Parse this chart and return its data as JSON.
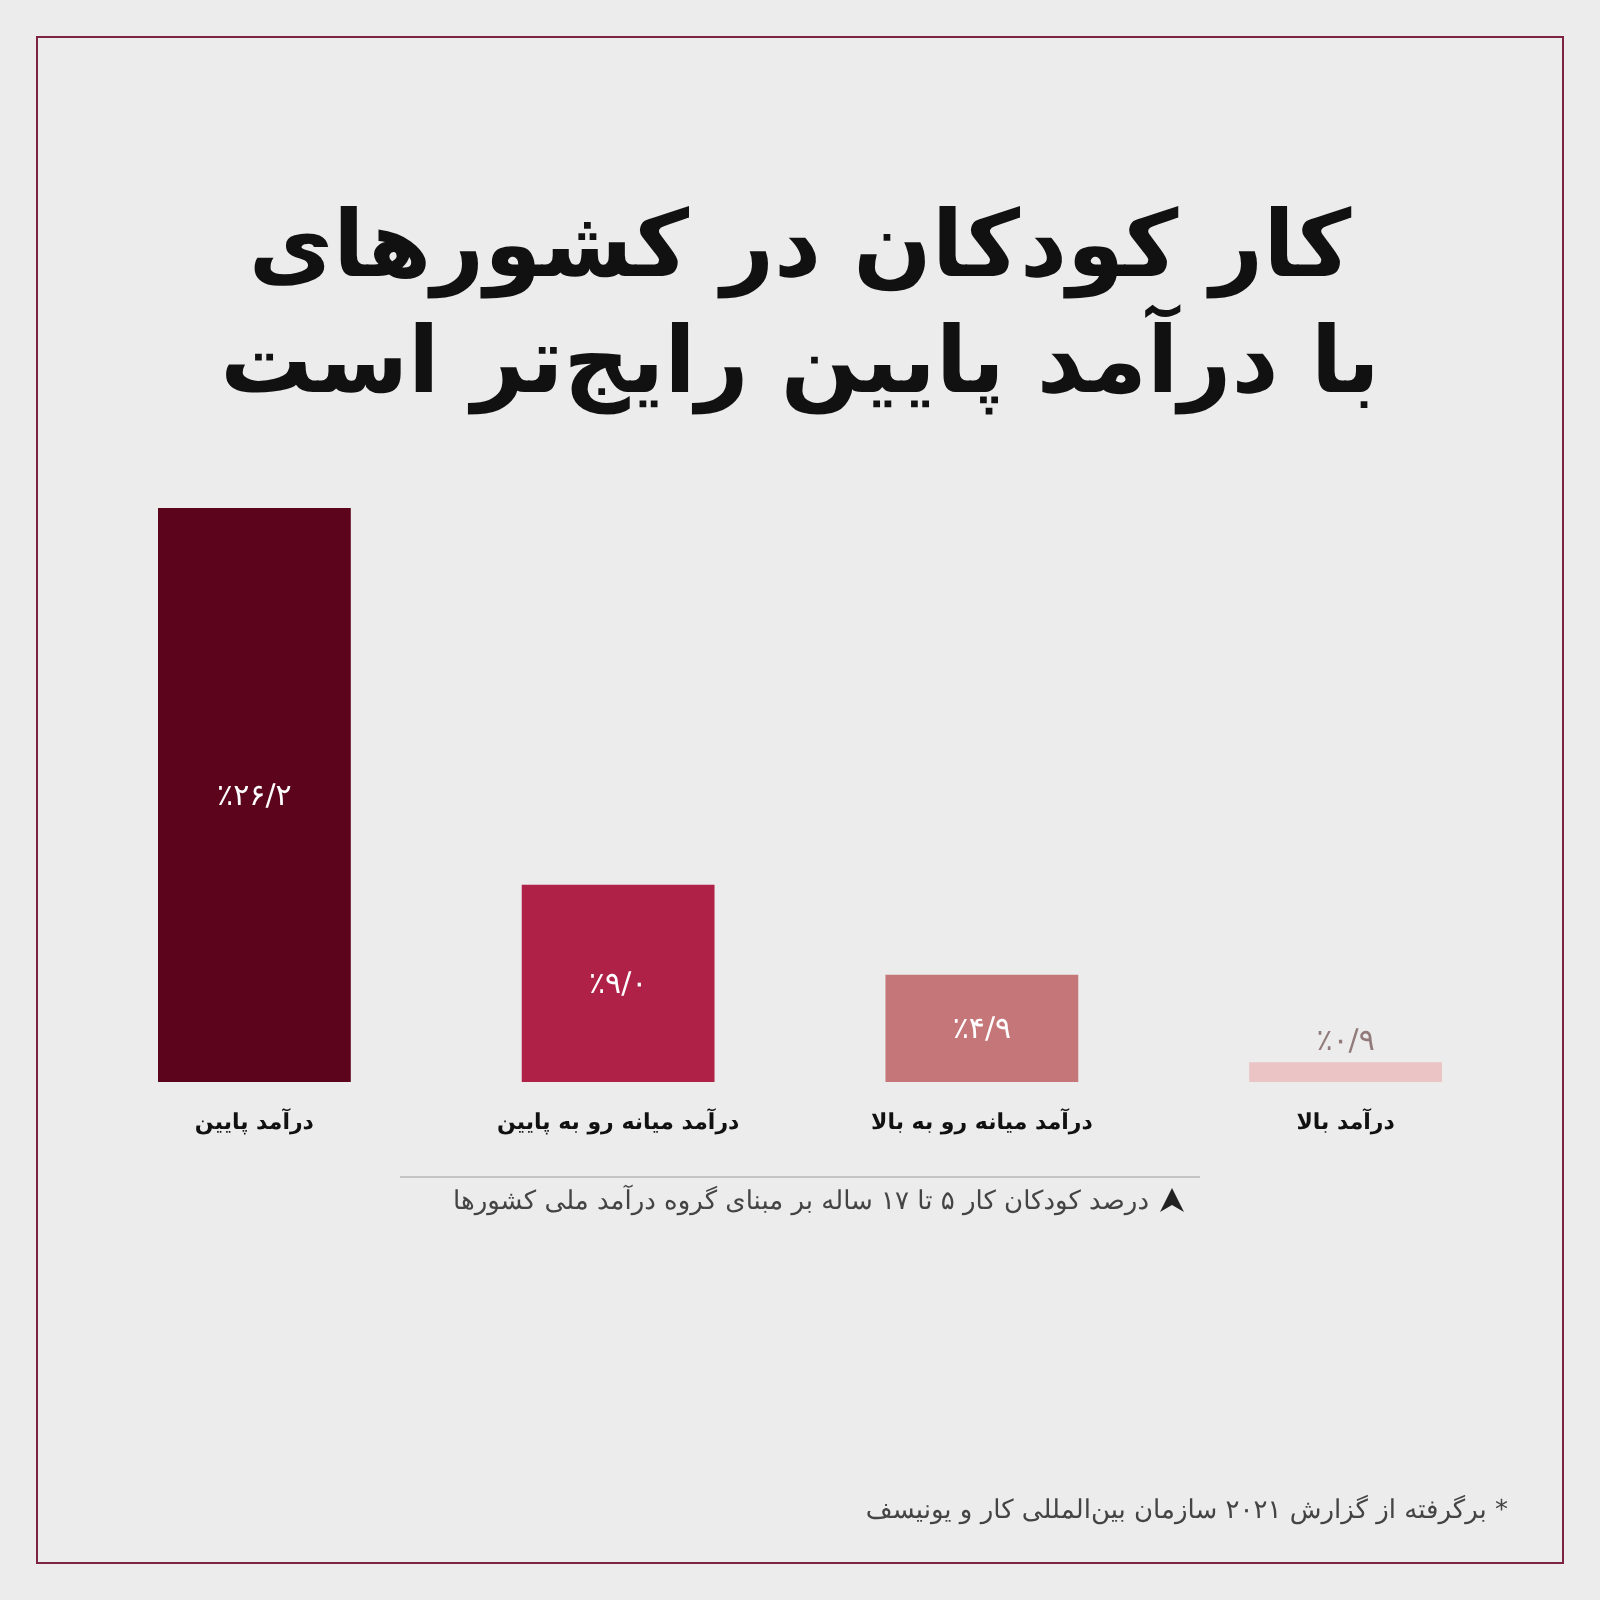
{
  "chart_data": {
    "type": "bar",
    "title": "کار کودکان در کشورهای با درآمد پایین رایج‌تر است",
    "categories": [
      "درآمد پایین",
      "درآمد میانه رو به پایین",
      "درآمد میانه رو به بالا",
      "درآمد بالا"
    ],
    "values": [
      26.2,
      9.0,
      4.9,
      0.9
    ],
    "colors": [
      "#5b041c",
      "#b02148",
      "#c57679",
      "#ebc4c6"
    ],
    "value_labels": [
      "٪۲۶/۲",
      "٪۹/۰",
      "٪۴/۹",
      "٪۰/۹"
    ],
    "xlabel": "درصد کودکان کار ۵ تا ۱۷ ساله بر مبنای گروه درآمد ملی کشورها",
    "annotations": [
      "* برگرفته از گزارش ۲۰۲۱ سازمان بین‌المللی کار و یونیسف"
    ]
  }
}
